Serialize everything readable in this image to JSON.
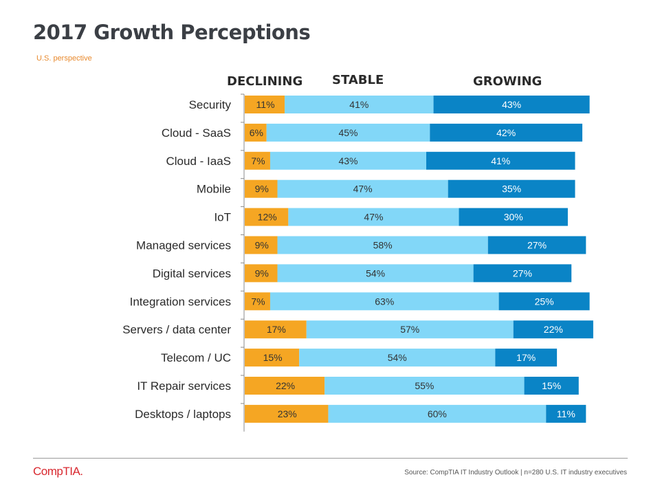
{
  "header": {
    "title": "2017 Growth Perceptions",
    "subtitle": "U.S. perspective"
  },
  "columns": {
    "declining": "DECLINING",
    "stable": "STABLE",
    "growing": "GROWING"
  },
  "colors": {
    "declining": "#f5a623",
    "stable": "#82d7f8",
    "growing": "#0a84c6",
    "title": "#3b3f45",
    "subtitle": "#e8892d",
    "logo": "#d8282f"
  },
  "chart_data": {
    "type": "bar",
    "orientation": "horizontal",
    "stacked": true,
    "categories": [
      "Security",
      "Cloud - SaaS",
      "Cloud - IaaS",
      "Mobile",
      "IoT",
      "Managed services",
      "Digital services",
      "Integration services",
      "Servers / data center",
      "Telecom / UC",
      "IT Repair services",
      "Desktops / laptops"
    ],
    "series": [
      {
        "name": "DECLINING",
        "values": [
          11,
          6,
          7,
          9,
          12,
          9,
          9,
          7,
          17,
          15,
          22,
          23
        ]
      },
      {
        "name": "STABLE",
        "values": [
          41,
          45,
          43,
          47,
          47,
          58,
          54,
          63,
          57,
          54,
          55,
          60
        ]
      },
      {
        "name": "GROWING",
        "values": [
          43,
          42,
          41,
          35,
          30,
          27,
          27,
          25,
          22,
          17,
          15,
          11
        ]
      }
    ],
    "value_suffix": "%",
    "title": "2017 Growth Perceptions",
    "xlabel": "",
    "ylabel": "",
    "grid": false
  },
  "footer": {
    "logo_text": "CompTIA.",
    "source": "Source: CompTIA IT Industry Outlook | n=280 U.S. IT industry executives"
  }
}
